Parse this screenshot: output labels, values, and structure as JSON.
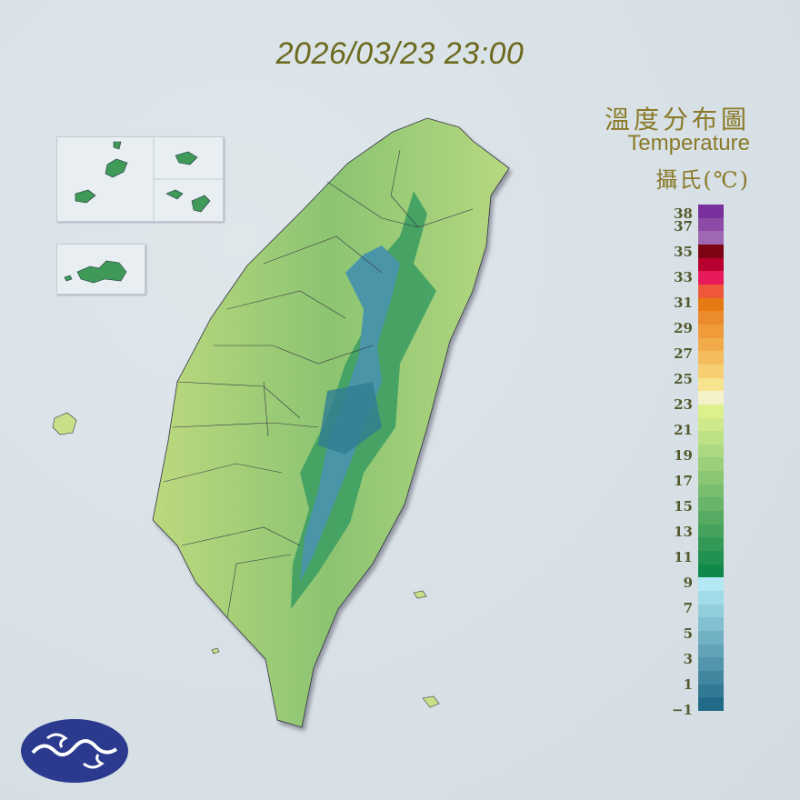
{
  "header": {
    "timestamp": "2026/03/23 23:00"
  },
  "legend": {
    "title_zh": "溫度分布圖",
    "title_en": "Temperature",
    "unit": "攝氏(℃)",
    "tick_labels": [
      "38",
      "37",
      "35",
      "33",
      "31",
      "29",
      "27",
      "25",
      "23",
      "21",
      "19",
      "17",
      "15",
      "13",
      "11",
      "9",
      "7",
      "5",
      "3",
      "1",
      "−1"
    ],
    "tick_values": [
      38,
      37,
      35,
      33,
      31,
      29,
      27,
      25,
      23,
      21,
      19,
      17,
      15,
      13,
      11,
      9,
      7,
      5,
      3,
      1,
      -1
    ],
    "range": [
      -1,
      39
    ],
    "colors_top_to_bottom": [
      "#7a2f9e",
      "#8c4ba6",
      "#9f68b2",
      "#7c0414",
      "#b8002e",
      "#e81a5c",
      "#ef573a",
      "#e67a12",
      "#ec8b2c",
      "#f09b3a",
      "#f2ab4a",
      "#f4bc5c",
      "#f6cf72",
      "#f8e38e",
      "#f3f2c8",
      "#dcf08c",
      "#cde98a",
      "#bde185",
      "#acd880",
      "#9bcf7a",
      "#8ac674",
      "#79bd6e",
      "#68b468",
      "#56ab62",
      "#45a25c",
      "#349956",
      "#229050",
      "#10884a",
      "#b2e9f4",
      "#a2dbe8",
      "#92cddc",
      "#82bfd0",
      "#72b1c4",
      "#62a3b8",
      "#5295ac",
      "#4287a0",
      "#327994",
      "#226b88"
    ]
  },
  "map": {
    "land_low": "#b9d97e",
    "land_high": "#2c9a5a",
    "mountain": "#4a96a8",
    "sea": "#d9e2e7"
  },
  "logo": {
    "color": "#2b3a8f"
  }
}
